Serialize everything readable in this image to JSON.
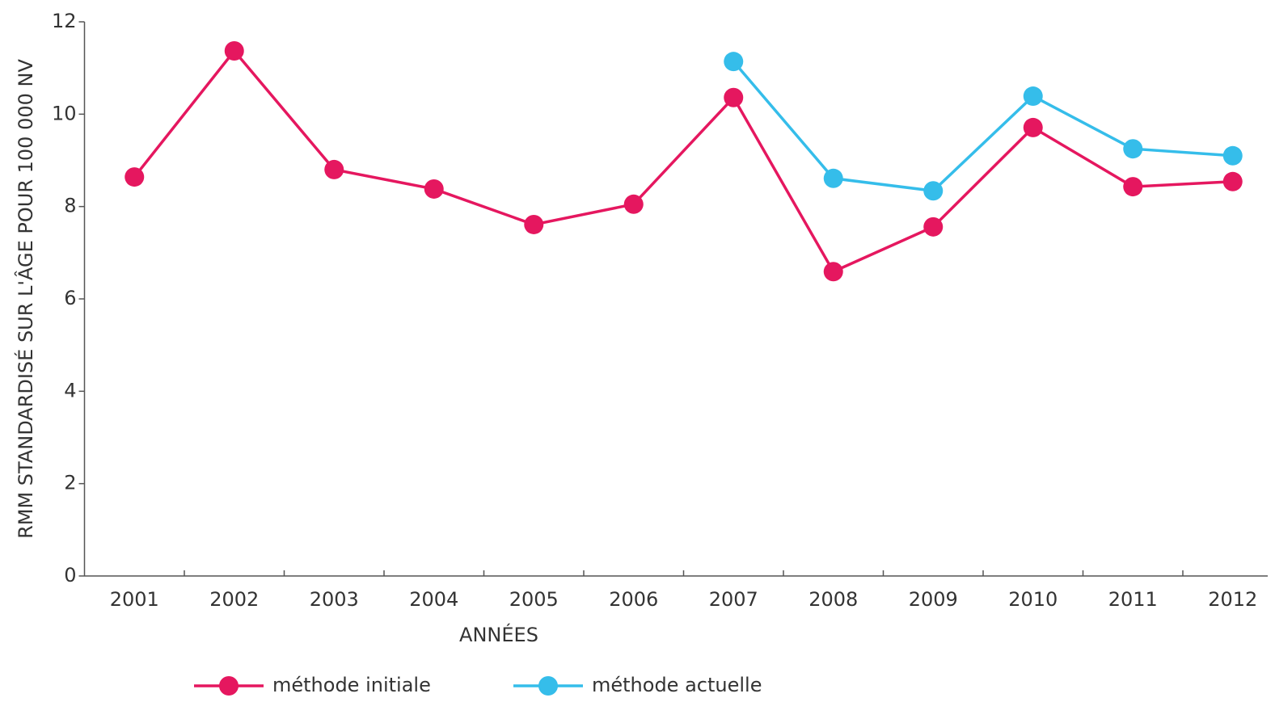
{
  "chart_data": {
    "type": "line",
    "x_label": "ANNÉES",
    "y_label": "RMM STANDARDISÉ SUR L'ÂGE POUR 100 000 NV",
    "categories": [
      "2001",
      "2002",
      "2003",
      "2004",
      "2005",
      "2006",
      "2007",
      "2008",
      "2009",
      "2010",
      "2011",
      "2012"
    ],
    "series": [
      {
        "name": "méthode initiale",
        "color": "#e5175f",
        "values": [
          8.64,
          11.37,
          8.8,
          8.38,
          7.61,
          8.05,
          10.36,
          6.59,
          7.56,
          9.71,
          8.43,
          8.54
        ]
      },
      {
        "name": "méthode actuelle",
        "color": "#35bdea",
        "values": [
          null,
          null,
          null,
          null,
          null,
          null,
          11.14,
          8.61,
          8.34,
          10.39,
          9.25,
          9.1
        ]
      }
    ],
    "ylim": [
      0,
      12
    ],
    "yticks": [
      0,
      2,
      4,
      6,
      8,
      10,
      12
    ],
    "grid": false
  }
}
